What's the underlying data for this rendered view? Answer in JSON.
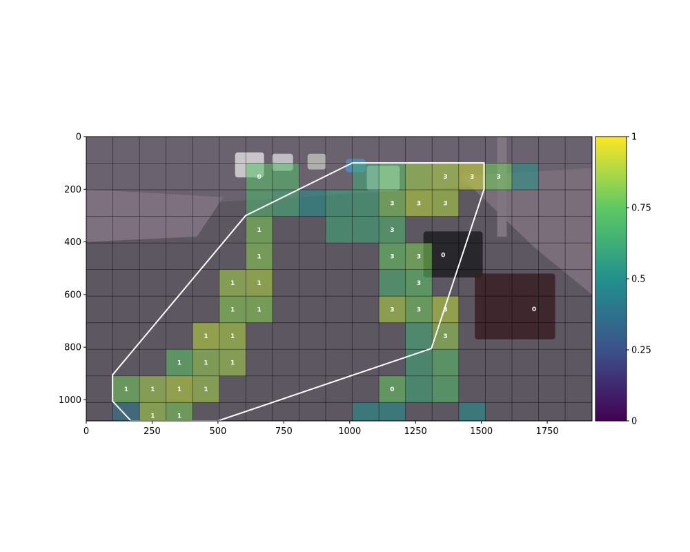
{
  "chart_data": {
    "type": "heatmap",
    "title": "",
    "xlabel": "",
    "ylabel": "",
    "x_range": [
      0,
      1920
    ],
    "y_range": [
      1080,
      0
    ],
    "x_ticks": [
      0,
      250,
      500,
      750,
      1000,
      1250,
      1500,
      1750
    ],
    "y_ticks": [
      0,
      200,
      400,
      600,
      800,
      1000
    ],
    "grid": true,
    "cell_size": 101,
    "grid_cols": 19,
    "grid_rows": 11,
    "colormap": "viridis",
    "colorbar": {
      "range": [
        0,
        1
      ],
      "ticks": [
        "0",
        "0.25",
        "0.5",
        "0.75",
        "1"
      ],
      "placement": "right"
    },
    "cells": [
      {
        "col": 6,
        "row": 1,
        "value": 0.72,
        "label": "0"
      },
      {
        "col": 7,
        "row": 1,
        "value": 0.7,
        "label": ""
      },
      {
        "col": 10,
        "row": 1,
        "value": 0.62,
        "label": ""
      },
      {
        "col": 11,
        "row": 1,
        "value": 0.72,
        "label": ""
      },
      {
        "col": 12,
        "row": 1,
        "value": 0.85,
        "label": ""
      },
      {
        "col": 13,
        "row": 1,
        "value": 0.88,
        "label": "3"
      },
      {
        "col": 14,
        "row": 1,
        "value": 0.92,
        "label": "3"
      },
      {
        "col": 15,
        "row": 1,
        "value": 0.78,
        "label": "3"
      },
      {
        "col": 16,
        "row": 1,
        "value": 0.52,
        "label": ""
      },
      {
        "col": 6,
        "row": 2,
        "value": 0.68,
        "label": ""
      },
      {
        "col": 7,
        "row": 2,
        "value": 0.64,
        "label": ""
      },
      {
        "col": 8,
        "row": 2,
        "value": 0.5,
        "label": ""
      },
      {
        "col": 9,
        "row": 2,
        "value": 0.6,
        "label": ""
      },
      {
        "col": 10,
        "row": 2,
        "value": 0.62,
        "label": ""
      },
      {
        "col": 11,
        "row": 2,
        "value": 0.8,
        "label": "3"
      },
      {
        "col": 12,
        "row": 2,
        "value": 0.9,
        "label": "3"
      },
      {
        "col": 13,
        "row": 2,
        "value": 0.88,
        "label": "3"
      },
      {
        "col": 6,
        "row": 3,
        "value": 0.8,
        "label": "1"
      },
      {
        "col": 9,
        "row": 3,
        "value": 0.62,
        "label": ""
      },
      {
        "col": 10,
        "row": 3,
        "value": 0.62,
        "label": ""
      },
      {
        "col": 11,
        "row": 3,
        "value": 0.68,
        "label": "3"
      },
      {
        "col": 6,
        "row": 4,
        "value": 0.82,
        "label": "1"
      },
      {
        "col": 11,
        "row": 4,
        "value": 0.76,
        "label": "3"
      },
      {
        "col": 12,
        "row": 4,
        "value": 0.8,
        "label": "3"
      },
      {
        "col": 5,
        "row": 5,
        "value": 0.86,
        "label": "1"
      },
      {
        "col": 6,
        "row": 5,
        "value": 0.88,
        "label": "1"
      },
      {
        "col": 11,
        "row": 5,
        "value": 0.66,
        "label": ""
      },
      {
        "col": 12,
        "row": 5,
        "value": 0.74,
        "label": "3"
      },
      {
        "col": 5,
        "row": 6,
        "value": 0.82,
        "label": "1"
      },
      {
        "col": 6,
        "row": 6,
        "value": 0.82,
        "label": "1"
      },
      {
        "col": 11,
        "row": 6,
        "value": 0.88,
        "label": "3"
      },
      {
        "col": 12,
        "row": 6,
        "value": 0.78,
        "label": "3"
      },
      {
        "col": 13,
        "row": 6,
        "value": 0.9,
        "label": "3"
      },
      {
        "col": 4,
        "row": 7,
        "value": 0.9,
        "label": "1"
      },
      {
        "col": 5,
        "row": 7,
        "value": 0.88,
        "label": "1"
      },
      {
        "col": 12,
        "row": 7,
        "value": 0.64,
        "label": ""
      },
      {
        "col": 13,
        "row": 7,
        "value": 0.84,
        "label": "3"
      },
      {
        "col": 3,
        "row": 8,
        "value": 0.74,
        "label": "1"
      },
      {
        "col": 4,
        "row": 8,
        "value": 0.84,
        "label": "1"
      },
      {
        "col": 5,
        "row": 8,
        "value": 0.86,
        "label": "1"
      },
      {
        "col": 12,
        "row": 8,
        "value": 0.62,
        "label": ""
      },
      {
        "col": 13,
        "row": 8,
        "value": 0.72,
        "label": ""
      },
      {
        "col": 1,
        "row": 9,
        "value": 0.78,
        "label": "1"
      },
      {
        "col": 2,
        "row": 9,
        "value": 0.86,
        "label": "1"
      },
      {
        "col": 3,
        "row": 9,
        "value": 0.9,
        "label": "1"
      },
      {
        "col": 4,
        "row": 9,
        "value": 0.86,
        "label": "1"
      },
      {
        "col": 11,
        "row": 9,
        "value": 0.76,
        "label": "0"
      },
      {
        "col": 12,
        "row": 9,
        "value": 0.62,
        "label": ""
      },
      {
        "col": 13,
        "row": 9,
        "value": 0.7,
        "label": ""
      },
      {
        "col": 1,
        "row": 10,
        "value": 0.4,
        "label": ""
      },
      {
        "col": 2,
        "row": 10,
        "value": 0.86,
        "label": "1"
      },
      {
        "col": 3,
        "row": 10,
        "value": 0.8,
        "label": "1"
      },
      {
        "col": 10,
        "row": 10,
        "value": 0.5,
        "label": ""
      },
      {
        "col": 11,
        "row": 10,
        "value": 0.5,
        "label": ""
      },
      {
        "col": 14,
        "row": 10,
        "value": 0.5,
        "label": ""
      }
    ],
    "outside_labels": [
      {
        "x": 1700,
        "y": 655,
        "label": "0"
      },
      {
        "x": 1355,
        "y": 450,
        "label": "0"
      }
    ],
    "roi_polygon": [
      [
        1010,
        100
      ],
      [
        1510,
        100
      ],
      [
        1510,
        200
      ],
      [
        1310,
        805
      ],
      [
        500,
        1080
      ],
      [
        170,
        1080
      ],
      [
        100,
        1005
      ],
      [
        100,
        905
      ],
      [
        605,
        300
      ],
      [
        1010,
        100
      ]
    ],
    "vehicles": [
      {
        "x": 1065,
        "y": 110,
        "w": 125,
        "h": 95,
        "color": "#c8c8c0"
      },
      {
        "x": 1280,
        "y": 360,
        "w": 225,
        "h": 175,
        "color": "#1e1e22"
      },
      {
        "x": 1475,
        "y": 520,
        "w": 305,
        "h": 250,
        "color": "#3a2024"
      },
      {
        "x": 565,
        "y": 60,
        "w": 110,
        "h": 95,
        "color": "#d8d8d8"
      },
      {
        "x": 705,
        "y": 65,
        "w": 80,
        "h": 65,
        "color": "#cfcfcf"
      },
      {
        "x": 840,
        "y": 65,
        "w": 70,
        "h": 60,
        "color": "#bdbdb5"
      },
      {
        "x": 985,
        "y": 85,
        "w": 75,
        "h": 50,
        "color": "#4f8fc0"
      }
    ]
  }
}
